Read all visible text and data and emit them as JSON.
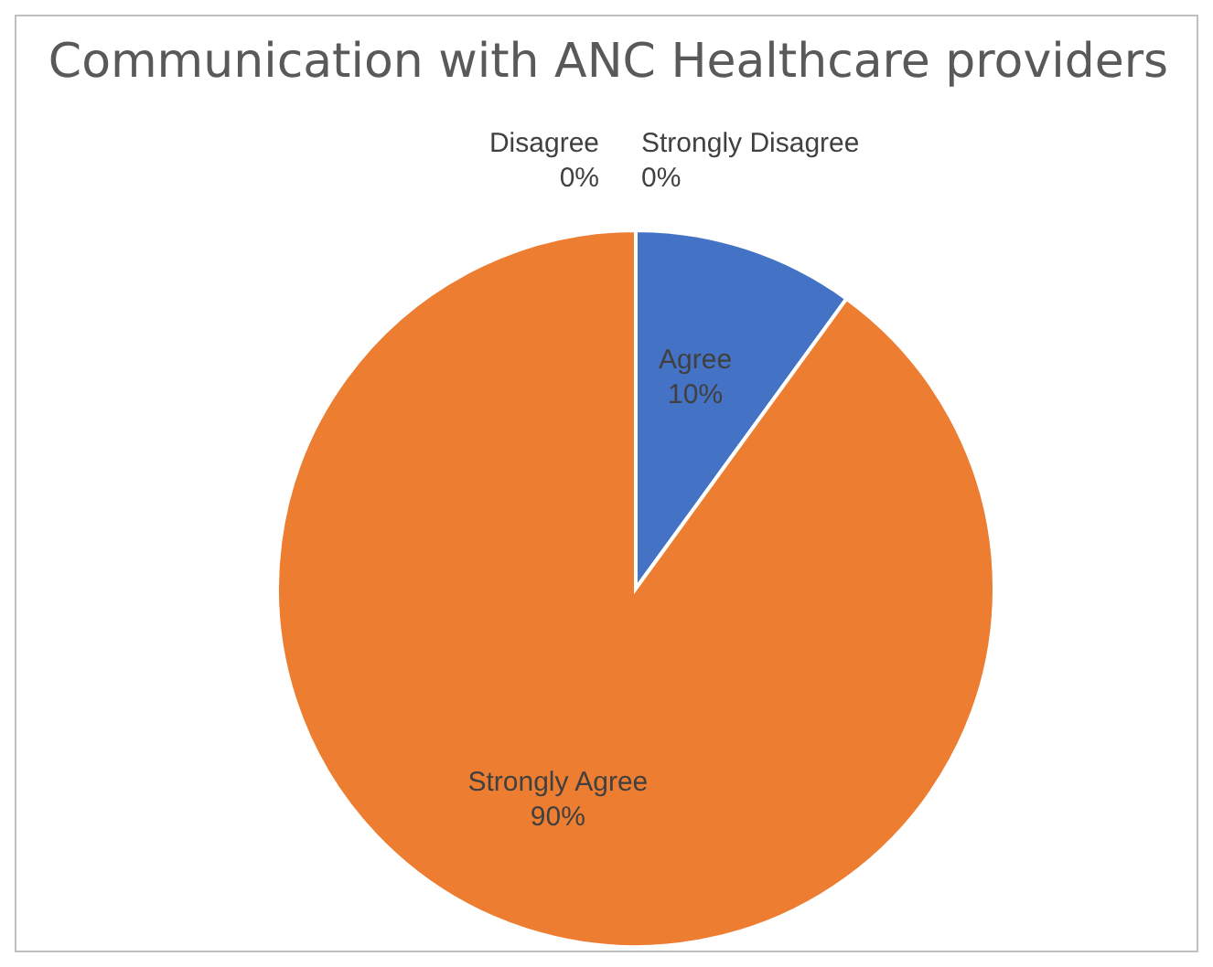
{
  "chart_data": {
    "type": "pie",
    "title": "Communication with ANC Healthcare providers",
    "categories": [
      "Agree",
      "Strongly Agree",
      "Disagree",
      "Strongly Disagree"
    ],
    "values": [
      10,
      90,
      0,
      0
    ],
    "value_labels": [
      "10%",
      "90%",
      "0%",
      "0%"
    ],
    "colors": [
      "#4472c4",
      "#ed7d31",
      "#a5a5a5",
      "#ffc000"
    ],
    "legend": false
  }
}
